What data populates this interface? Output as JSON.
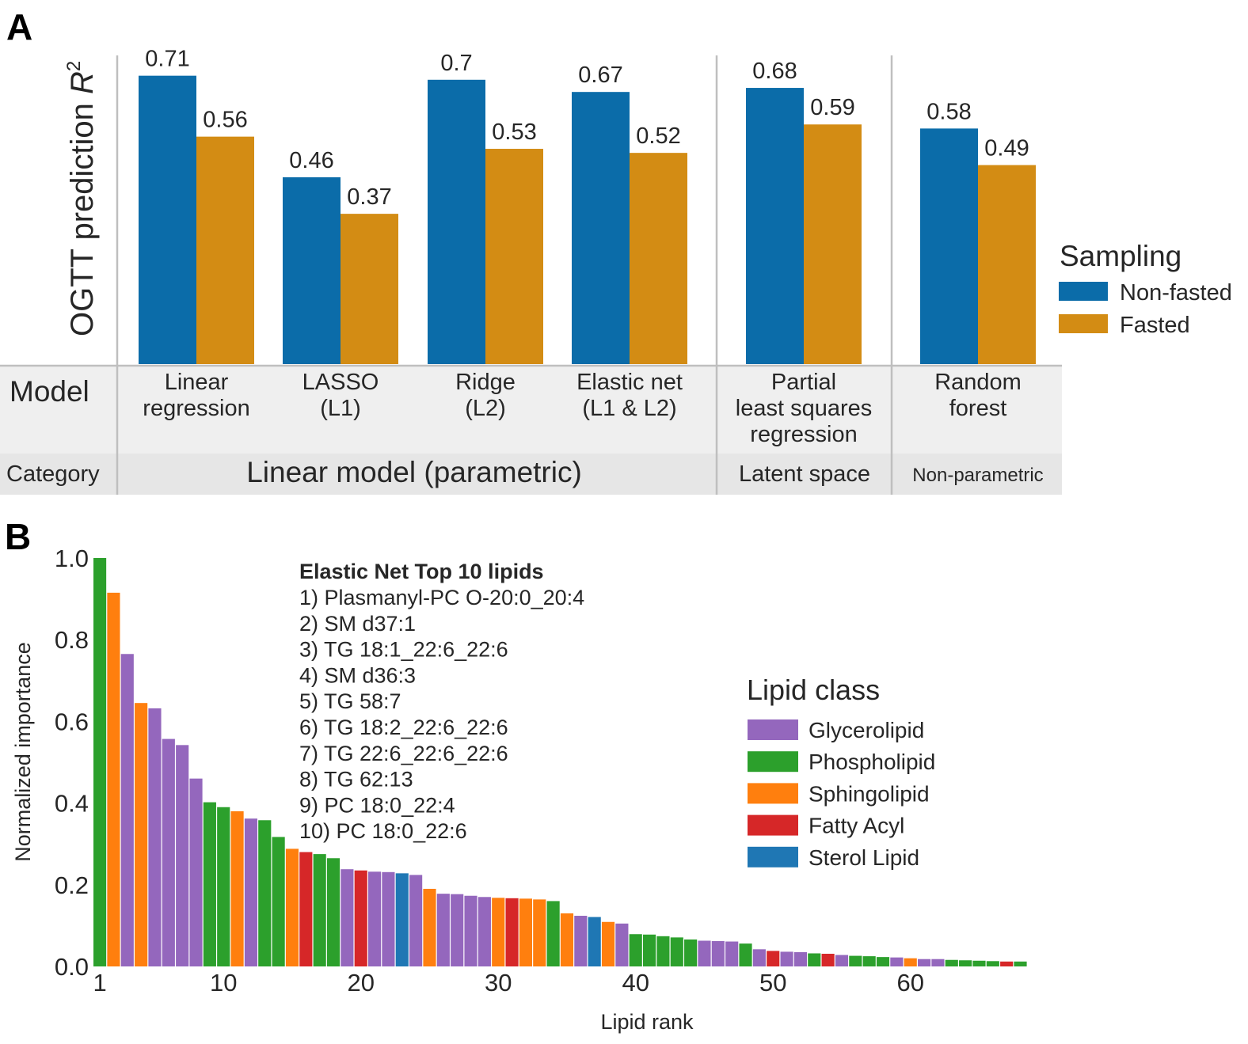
{
  "colors": {
    "non_fasted": "#0b6ca9",
    "fasted": "#d38c14",
    "glycerolipid": "#9467bd",
    "phospholipid": "#2ca02c",
    "sphingolipid": "#ff7f0e",
    "fatty_acyl": "#d62728",
    "sterol_lipid": "#1f77b4",
    "table_bg": "#efefef",
    "rule": "#bfbfbf"
  },
  "panel_a": {
    "label": "A",
    "ylabel_text": "OGTT prediction ",
    "ylabel_var": "R",
    "ylabel_sup": "2",
    "row_model_label": "Model",
    "row_category_label": "Category",
    "legend": {
      "title": "Sampling",
      "items": [
        "Non-fasted",
        "Fasted"
      ]
    },
    "categories": [
      {
        "label": "Linear model (parametric)",
        "span": 4
      },
      {
        "label": "Latent space",
        "span": 1
      },
      {
        "label": "Non-parametric",
        "span": 1
      }
    ],
    "chart_data": {
      "type": "bar",
      "categories": [
        [
          "Linear",
          "regression"
        ],
        [
          "LASSO",
          "(L1)"
        ],
        [
          "Ridge",
          "(L2)"
        ],
        [
          "Elastic net",
          "(L1 & L2)"
        ],
        [
          "Partial",
          "least squares",
          "regression"
        ],
        [
          "Random",
          "forest"
        ]
      ],
      "series": [
        {
          "name": "Non-fasted",
          "values": [
            0.71,
            0.46,
            0.7,
            0.67,
            0.68,
            0.58
          ],
          "labels": [
            "0.71",
            "0.46",
            "0.7",
            "0.67",
            "0.68",
            "0.58"
          ]
        },
        {
          "name": "Fasted",
          "values": [
            0.56,
            0.37,
            0.53,
            0.52,
            0.59,
            0.49
          ],
          "labels": [
            "0.56",
            "0.37",
            "0.53",
            "0.52",
            "0.59",
            "0.49"
          ]
        }
      ],
      "ylim": [
        0,
        0.76
      ]
    }
  },
  "panel_b": {
    "label": "B",
    "top_list": {
      "title": "Elastic Net Top 10 lipids",
      "items": [
        "1) Plasmanyl-PC O-20:0_20:4",
        "2) SM d37:1",
        "3) TG 18:1_22:6_22:6",
        "4) SM d36:3",
        "5) TG 58:7",
        "6) TG 18:2_22:6_22:6",
        "7) TG 22:6_22:6_22:6",
        "8) TG 62:13",
        "9) PC 18:0_22:4",
        "10) PC 18:0_22:6"
      ]
    },
    "legend": {
      "title": "Lipid class",
      "items": [
        "Glycerolipid",
        "Phospholipid",
        "Sphingolipid",
        "Fatty Acyl",
        "Sterol Lipid"
      ]
    },
    "chart_data": {
      "type": "bar",
      "xlabel": "Lipid rank",
      "ylabel": "Normalized importance",
      "xticks": [
        1,
        10,
        20,
        30,
        40,
        50,
        60
      ],
      "yticks": [
        "0.0",
        "0.2",
        "0.4",
        "0.6",
        "0.8",
        "1.0"
      ],
      "ylim": [
        0,
        1.0
      ],
      "x": [
        1,
        2,
        3,
        4,
        5,
        6,
        7,
        8,
        9,
        10,
        11,
        12,
        13,
        14,
        15,
        16,
        17,
        18,
        19,
        20,
        21,
        22,
        23,
        24,
        25,
        26,
        27,
        28,
        29,
        30,
        31,
        32,
        33,
        34,
        35,
        36,
        37,
        38,
        39,
        40,
        41,
        42,
        43,
        44,
        45,
        46,
        47,
        48,
        49,
        50,
        51,
        52,
        53,
        54,
        55,
        56,
        57,
        58,
        59,
        60,
        61,
        62,
        63,
        64,
        65,
        66,
        67,
        68
      ],
      "values": [
        1.0,
        0.915,
        0.765,
        0.645,
        0.632,
        0.557,
        0.542,
        0.46,
        0.402,
        0.39,
        0.38,
        0.362,
        0.358,
        0.317,
        0.288,
        0.28,
        0.275,
        0.265,
        0.238,
        0.235,
        0.232,
        0.231,
        0.228,
        0.224,
        0.19,
        0.178,
        0.177,
        0.173,
        0.17,
        0.168,
        0.167,
        0.166,
        0.164,
        0.16,
        0.13,
        0.124,
        0.121,
        0.109,
        0.105,
        0.079,
        0.078,
        0.074,
        0.071,
        0.066,
        0.063,
        0.062,
        0.061,
        0.056,
        0.042,
        0.038,
        0.036,
        0.035,
        0.032,
        0.031,
        0.028,
        0.026,
        0.025,
        0.023,
        0.022,
        0.02,
        0.018,
        0.018,
        0.016,
        0.015,
        0.014,
        0.013,
        0.012,
        0.012
      ],
      "classes": [
        "Phospholipid",
        "Sphingolipid",
        "Glycerolipid",
        "Sphingolipid",
        "Glycerolipid",
        "Glycerolipid",
        "Glycerolipid",
        "Glycerolipid",
        "Phospholipid",
        "Phospholipid",
        "Sphingolipid",
        "Glycerolipid",
        "Phospholipid",
        "Phospholipid",
        "Sphingolipid",
        "Fatty Acyl",
        "Phospholipid",
        "Phospholipid",
        "Glycerolipid",
        "Fatty Acyl",
        "Glycerolipid",
        "Glycerolipid",
        "Sterol Lipid",
        "Glycerolipid",
        "Sphingolipid",
        "Glycerolipid",
        "Glycerolipid",
        "Glycerolipid",
        "Glycerolipid",
        "Sphingolipid",
        "Fatty Acyl",
        "Sphingolipid",
        "Sphingolipid",
        "Phospholipid",
        "Sphingolipid",
        "Glycerolipid",
        "Sterol Lipid",
        "Sphingolipid",
        "Glycerolipid",
        "Phospholipid",
        "Phospholipid",
        "Phospholipid",
        "Phospholipid",
        "Phospholipid",
        "Glycerolipid",
        "Glycerolipid",
        "Glycerolipid",
        "Phospholipid",
        "Glycerolipid",
        "Fatty Acyl",
        "Glycerolipid",
        "Glycerolipid",
        "Phospholipid",
        "Fatty Acyl",
        "Glycerolipid",
        "Phospholipid",
        "Phospholipid",
        "Phospholipid",
        "Glycerolipid",
        "Sphingolipid",
        "Glycerolipid",
        "Glycerolipid",
        "Phospholipid",
        "Phospholipid",
        "Phospholipid",
        "Phospholipid",
        "Fatty Acyl",
        "Phospholipid"
      ]
    }
  }
}
